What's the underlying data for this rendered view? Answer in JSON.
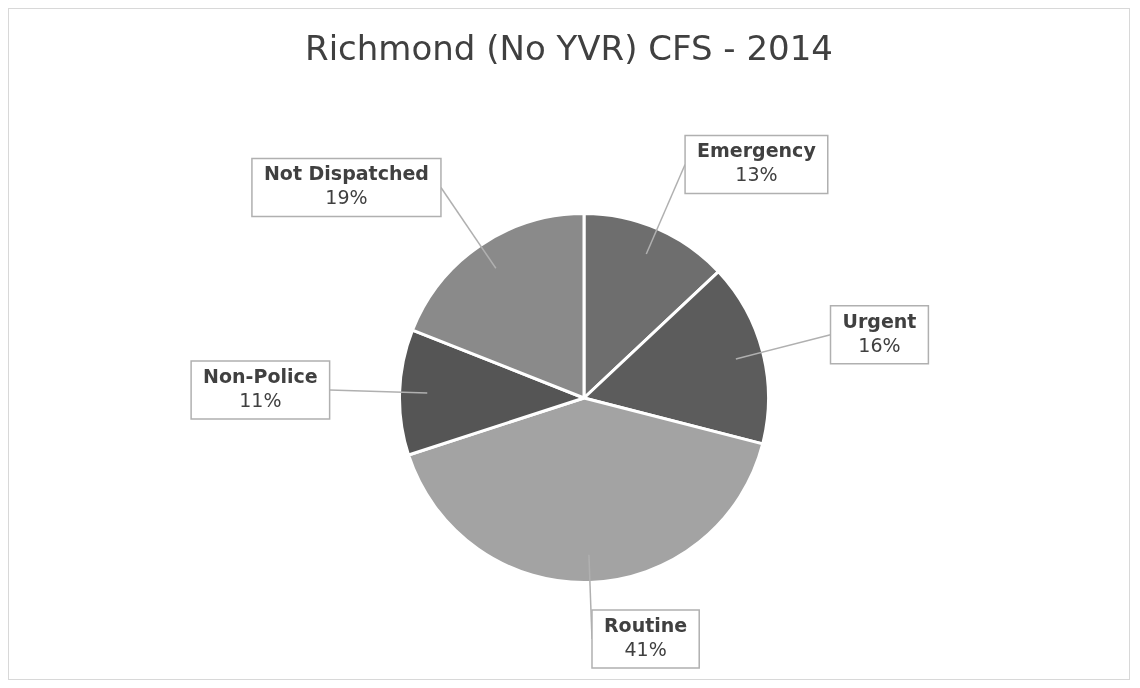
{
  "chart_data": {
    "type": "pie",
    "title": "Richmond (No YVR) CFS - 2014",
    "categories": [
      "Emergency",
      "Urgent",
      "Routine",
      "Non-Police",
      "Not Dispatched"
    ],
    "values": [
      13,
      16,
      41,
      11,
      19
    ],
    "colors": [
      "#6e6e6e",
      "#5c5c5c",
      "#a3a3a3",
      "#555555",
      "#8a8a8a"
    ],
    "value_labels": [
      "13%",
      "16%",
      "41%",
      "11%",
      "19%"
    ],
    "legend": false
  }
}
